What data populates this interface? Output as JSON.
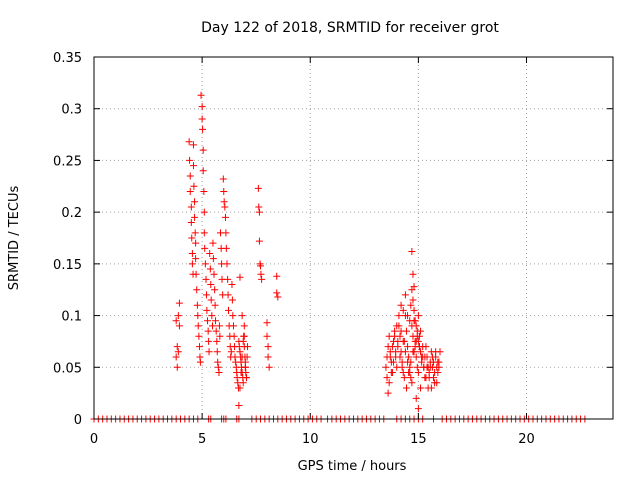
{
  "chart_data": {
    "type": "scatter",
    "title": "Day 122 of 2018, SRMTID for receiver grot",
    "xlabel": "GPS time / hours",
    "ylabel": "SRMTID / TECUs",
    "xlim": [
      0,
      24
    ],
    "ylim": [
      0,
      0.35
    ],
    "xticks": [
      0,
      5,
      10,
      15,
      20
    ],
    "xtick_labels": [
      "0",
      "5",
      "10",
      "15",
      "20"
    ],
    "yticks": [
      0,
      0.05,
      0.1,
      0.15,
      0.2,
      0.25,
      0.3,
      0.35
    ],
    "ytick_labels": [
      "0",
      "0.05",
      "0.1",
      "0.15",
      "0.2",
      "0.25",
      "0.3",
      "0.35"
    ],
    "grid": true,
    "marker": "+",
    "color": "#ff0000",
    "series": [
      {
        "x": [
          3.8,
          3.8,
          3.85,
          3.85,
          3.9,
          3.9,
          3.95,
          3.95,
          4.4,
          4.42,
          4.45,
          4.45,
          4.5,
          4.5,
          4.52,
          4.55,
          4.55,
          4.58,
          4.6,
          4.6,
          4.62,
          4.65,
          4.65,
          4.68,
          4.7,
          4.7,
          4.72,
          4.75,
          4.78,
          4.8,
          4.82,
          4.85,
          4.88,
          4.9,
          4.92,
          4.95,
          5.0,
          5.0,
          5.02,
          5.05,
          5.05,
          5.08,
          5.1,
          5.1,
          5.12,
          5.15,
          5.18,
          5.2,
          5.22,
          5.25,
          5.28,
          5.3,
          5.32,
          5.35,
          5.38,
          5.4,
          5.42,
          5.45,
          5.48,
          5.5,
          5.52,
          5.55,
          5.58,
          5.6,
          5.62,
          5.65,
          5.68,
          5.7,
          5.72,
          5.75,
          5.78,
          5.8,
          5.82,
          5.85,
          5.88,
          5.9,
          5.92,
          5.95,
          5.98,
          6.0,
          6.02,
          6.05,
          6.08,
          6.1,
          6.12,
          6.15,
          6.18,
          6.2,
          6.22,
          6.25,
          6.28,
          6.3,
          6.32,
          6.35,
          6.38,
          6.4,
          6.42,
          6.45,
          6.48,
          6.5,
          6.52,
          6.55,
          6.58,
          6.6,
          6.62,
          6.65,
          6.68,
          6.7,
          6.72,
          6.75,
          6.78,
          6.8,
          6.82,
          6.85,
          6.88,
          6.9,
          6.92,
          6.95,
          6.98,
          7.0,
          7.02,
          7.05,
          7.08,
          7.1,
          6.7,
          6.75,
          6.8,
          6.85,
          6.9,
          6.95,
          7.0,
          7.05,
          6.75,
          6.85,
          6.95,
          7.0,
          7.6,
          7.62,
          7.65,
          7.65,
          7.68,
          7.7,
          7.72,
          7.75,
          8.0,
          8.0,
          8.05,
          8.05,
          8.1,
          8.45,
          8.45,
          8.5
        ],
        "y": [
          0.06,
          0.095,
          0.05,
          0.07,
          0.1,
          0.065,
          0.09,
          0.112,
          0.268,
          0.25,
          0.235,
          0.22,
          0.205,
          0.19,
          0.175,
          0.16,
          0.15,
          0.14,
          0.265,
          0.245,
          0.225,
          0.21,
          0.195,
          0.18,
          0.17,
          0.155,
          0.14,
          0.125,
          0.11,
          0.1,
          0.09,
          0.08,
          0.07,
          0.06,
          0.055,
          0.313,
          0.302,
          0.29,
          0.28,
          0.26,
          0.24,
          0.22,
          0.2,
          0.18,
          0.165,
          0.15,
          0.135,
          0.12,
          0.105,
          0.095,
          0.085,
          0.075,
          0.065,
          0.16,
          0.145,
          0.13,
          0.115,
          0.1,
          0.09,
          0.17,
          0.155,
          0.14,
          0.125,
          0.11,
          0.095,
          0.085,
          0.075,
          0.065,
          0.055,
          0.05,
          0.045,
          0.09,
          0.08,
          0.18,
          0.165,
          0.15,
          0.135,
          0.12,
          0.232,
          0.22,
          0.21,
          0.205,
          0.195,
          0.18,
          0.165,
          0.15,
          0.135,
          0.12,
          0.105,
          0.09,
          0.08,
          0.07,
          0.06,
          0.065,
          0.13,
          0.115,
          0.1,
          0.09,
          0.08,
          0.07,
          0.06,
          0.055,
          0.05,
          0.045,
          0.04,
          0.035,
          0.03,
          0.075,
          0.07,
          0.065,
          0.06,
          0.055,
          0.05,
          0.045,
          0.04,
          0.035,
          0.08,
          0.07,
          0.06,
          0.05,
          0.045,
          0.04,
          0.06,
          0.07,
          0.013,
          0.03,
          0.045,
          0.06,
          0.075,
          0.09,
          0.05,
          0.04,
          0.137,
          0.1,
          0.08,
          0.055,
          0.223,
          0.205,
          0.2,
          0.172,
          0.15,
          0.148,
          0.14,
          0.135,
          0.093,
          0.08,
          0.07,
          0.06,
          0.05,
          0.138,
          0.122,
          0.118
        ]
      },
      {
        "x": [
          13.5,
          13.55,
          13.6,
          13.65,
          13.7,
          13.75,
          13.8,
          13.85,
          13.9,
          13.95,
          14.0,
          14.05,
          14.1,
          14.15,
          14.2,
          14.25,
          14.3,
          14.35,
          14.4,
          14.45,
          14.5,
          14.55,
          14.6,
          14.65,
          14.7,
          14.75,
          14.8,
          14.85,
          14.9,
          14.95,
          15.0,
          15.05,
          15.1,
          15.15,
          15.2,
          15.25,
          15.3,
          15.35,
          15.4,
          15.45,
          15.5,
          15.55,
          15.6,
          15.65,
          15.7,
          15.75,
          15.8,
          15.85,
          15.9,
          15.95,
          16.0,
          13.55,
          13.65,
          13.75,
          13.85,
          13.95,
          14.05,
          14.15,
          14.25,
          14.35,
          14.45,
          14.55,
          14.65,
          14.75,
          14.85,
          14.95,
          15.05,
          15.15,
          15.25,
          15.35,
          15.45,
          15.55,
          15.65,
          15.75,
          15.85,
          15.95,
          13.6,
          13.7,
          13.8,
          13.9,
          14.0,
          14.1,
          14.2,
          14.3,
          14.4,
          14.5,
          14.6,
          14.7,
          14.8,
          14.9,
          15.0,
          15.1,
          15.2,
          15.3,
          15.4,
          15.5,
          15.6,
          15.7,
          15.8,
          15.9,
          14.2,
          14.3,
          14.4,
          14.5,
          14.6,
          14.65,
          14.7,
          14.75,
          14.8,
          14.85,
          14.9,
          14.95,
          15.0,
          15.05,
          14.7,
          14.75,
          14.8,
          14.9,
          15.0,
          15.1
        ],
        "y": [
          0.05,
          0.06,
          0.07,
          0.08,
          0.065,
          0.055,
          0.045,
          0.075,
          0.085,
          0.06,
          0.05,
          0.07,
          0.09,
          0.08,
          0.065,
          0.055,
          0.045,
          0.075,
          0.1,
          0.085,
          0.07,
          0.06,
          0.05,
          0.04,
          0.09,
          0.08,
          0.095,
          0.07,
          0.06,
          0.05,
          0.045,
          0.08,
          0.065,
          0.055,
          0.06,
          0.05,
          0.04,
          0.07,
          0.06,
          0.05,
          0.045,
          0.055,
          0.065,
          0.05,
          0.04,
          0.035,
          0.06,
          0.05,
          0.045,
          0.055,
          0.065,
          0.04,
          0.035,
          0.045,
          0.055,
          0.065,
          0.075,
          0.06,
          0.05,
          0.04,
          0.03,
          0.045,
          0.055,
          0.065,
          0.075,
          0.085,
          0.07,
          0.06,
          0.05,
          0.04,
          0.03,
          0.05,
          0.06,
          0.045,
          0.035,
          0.05,
          0.025,
          0.06,
          0.07,
          0.08,
          0.09,
          0.1,
          0.085,
          0.075,
          0.065,
          0.055,
          0.045,
          0.035,
          0.065,
          0.075,
          0.1,
          0.085,
          0.07,
          0.06,
          0.05,
          0.04,
          0.03,
          0.055,
          0.065,
          0.055,
          0.11,
          0.105,
          0.12,
          0.1,
          0.095,
          0.11,
          0.125,
          0.115,
          0.105,
          0.095,
          0.09,
          0.08,
          0.075,
          0.07,
          0.162,
          0.14,
          0.128,
          0.02,
          0.01,
          0.03
        ]
      },
      {
        "x": [
          0.0,
          0.2,
          0.4,
          0.6,
          0.8,
          1.0,
          1.2,
          1.4,
          1.6,
          1.8,
          2.0,
          2.2,
          2.4,
          2.6,
          2.8,
          3.0,
          3.2,
          3.4,
          3.6,
          3.8,
          4.0,
          4.2,
          4.4,
          4.6,
          4.8,
          5.3,
          5.4,
          5.9,
          6.0,
          6.1,
          6.6,
          6.7,
          7.3,
          7.5,
          7.7,
          7.9,
          8.1,
          8.3,
          8.5,
          8.7,
          8.9,
          9.1,
          9.3,
          9.5,
          9.7,
          9.9,
          10.1,
          10.3,
          10.5,
          10.8,
          11.0,
          11.2,
          11.4,
          11.6,
          11.8,
          12.0,
          12.2,
          12.4,
          12.6,
          12.8,
          13.0,
          13.2,
          13.4,
          14.0,
          14.2,
          14.4,
          14.6,
          14.8,
          15.0,
          15.2,
          15.7,
          16.1,
          16.3,
          16.5,
          16.7,
          16.9,
          17.1,
          17.3,
          17.5,
          17.7,
          17.9,
          18.1,
          18.3,
          18.5,
          18.7,
          18.9,
          19.1,
          19.3,
          19.5,
          19.7,
          19.9,
          20.1,
          20.3,
          20.5,
          20.7,
          20.9,
          21.1,
          21.3,
          21.5,
          21.7,
          21.9,
          22.1,
          22.3,
          22.5,
          22.7
        ],
        "y": [
          0,
          0,
          0,
          0,
          0,
          0,
          0,
          0,
          0,
          0,
          0,
          0,
          0,
          0,
          0,
          0,
          0,
          0,
          0,
          0,
          0,
          0,
          0,
          0,
          0,
          0,
          0,
          0,
          0,
          0,
          0,
          0,
          0,
          0,
          0,
          0,
          0,
          0,
          0,
          0,
          0,
          0,
          0,
          0,
          0,
          0,
          0,
          0,
          0,
          0,
          0,
          0,
          0,
          0,
          0,
          0,
          0,
          0,
          0,
          0,
          0,
          0,
          0,
          0,
          0,
          0,
          0,
          0,
          0,
          0,
          0,
          0,
          0,
          0,
          0,
          0,
          0,
          0,
          0,
          0,
          0,
          0,
          0,
          0,
          0,
          0,
          0,
          0,
          0,
          0,
          0,
          0,
          0,
          0,
          0,
          0,
          0,
          0,
          0,
          0,
          0,
          0,
          0,
          0,
          0
        ]
      }
    ]
  }
}
